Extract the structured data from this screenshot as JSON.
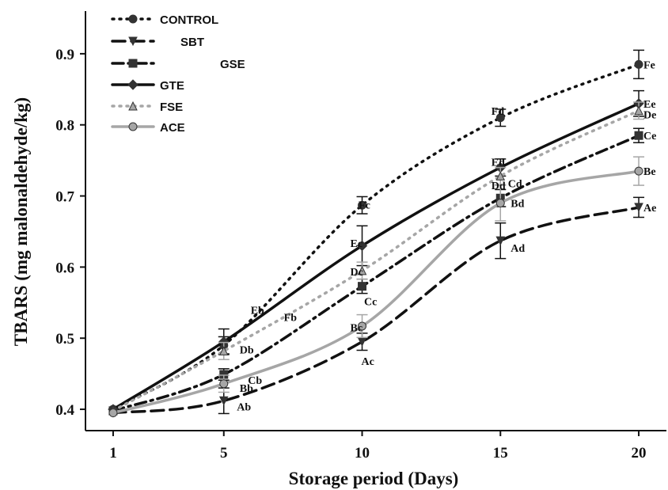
{
  "chart_data": {
    "type": "line",
    "xlabel": "Storage period (Days)",
    "ylabel": "TBARS (mg malonaldehyde/kg)",
    "x": [
      1,
      5,
      10,
      15,
      20
    ],
    "x_ticks": [
      "1",
      "5",
      "10",
      "15",
      "20"
    ],
    "y_ticks": [
      "0.4",
      "0.5",
      "0.6",
      "0.7",
      "0.8",
      "0.9"
    ],
    "xlim": [
      0,
      21
    ],
    "ylim": [
      0.37,
      0.96
    ],
    "legend_position": "top-left",
    "series": [
      {
        "name": "CONTROL",
        "color": "#111111",
        "dash": "dotted",
        "marker": "circle",
        "values": [
          0.4,
          0.49,
          0.687,
          0.81,
          0.885
        ],
        "errors": [
          0.005,
          0.012,
          0.012,
          0.012,
          0.02
        ]
      },
      {
        "name": "SBT",
        "color": "#111111",
        "dash": "dashed",
        "marker": "triangle-down",
        "values": [
          0.395,
          0.412,
          0.495,
          0.637,
          0.684
        ],
        "errors": [
          0.005,
          0.018,
          0.012,
          0.025,
          0.014
        ]
      },
      {
        "name": "GSE",
        "color": "#111111",
        "dash": "dashdot",
        "marker": "square",
        "values": [
          0.398,
          0.449,
          0.573,
          0.697,
          0.785
        ],
        "errors": [
          0.005,
          0.008,
          0.01,
          0.012,
          0.01
        ]
      },
      {
        "name": "GTE",
        "color": "#111111",
        "dash": "solid",
        "marker": "diamond",
        "values": [
          0.4,
          0.495,
          0.63,
          0.74,
          0.83
        ],
        "errors": [
          0.005,
          0.018,
          0.028,
          0.012,
          0.018
        ]
      },
      {
        "name": "FSE",
        "color": "#a6a6a6",
        "dash": "dotted",
        "marker": "triangle-up",
        "values": [
          0.398,
          0.482,
          0.595,
          0.728,
          0.82
        ],
        "errors": [
          0.005,
          0.012,
          0.012,
          0.012,
          0.012
        ]
      },
      {
        "name": "ACE",
        "color": "#a6a6a6",
        "dash": "solid",
        "marker": "circle",
        "values": [
          0.395,
          0.436,
          0.517,
          0.69,
          0.735
        ],
        "errors": [
          0.005,
          0.012,
          0.016,
          0.025,
          0.02
        ]
      }
    ],
    "annotations": [
      {
        "text": "Fe",
        "x": 20,
        "y": 0.885
      },
      {
        "text": "Ee",
        "x": 20,
        "y": 0.83
      },
      {
        "text": "De",
        "x": 20,
        "y": 0.815
      },
      {
        "text": "Ce",
        "x": 20,
        "y": 0.785
      },
      {
        "text": "Be",
        "x": 20,
        "y": 0.735
      },
      {
        "text": "Ae",
        "x": 20,
        "y": 0.684
      },
      {
        "text": "Fd",
        "x": 14.5,
        "y": 0.82
      },
      {
        "text": "Ed",
        "x": 14.5,
        "y": 0.748
      },
      {
        "text": "Dd",
        "x": 14.5,
        "y": 0.715
      },
      {
        "text": "Cd",
        "x": 15.1,
        "y": 0.718
      },
      {
        "text": "Bd",
        "x": 15.2,
        "y": 0.69
      },
      {
        "text": "Ad",
        "x": 15.2,
        "y": 0.627
      },
      {
        "text": "Fc",
        "x": 9.7,
        "y": 0.688
      },
      {
        "text": "Ec",
        "x": 9.4,
        "y": 0.634
      },
      {
        "text": "Dc",
        "x": 9.4,
        "y": 0.594
      },
      {
        "text": "Cc",
        "x": 9.9,
        "y": 0.552
      },
      {
        "text": "Bc",
        "x": 9.4,
        "y": 0.515
      },
      {
        "text": "Ac",
        "x": 9.8,
        "y": 0.468
      },
      {
        "text": "Eb",
        "x": 5.8,
        "y": 0.54
      },
      {
        "text": "Fb",
        "x": 7.0,
        "y": 0.53
      },
      {
        "text": "Db",
        "x": 5.4,
        "y": 0.484
      },
      {
        "text": "Cb",
        "x": 5.7,
        "y": 0.441
      },
      {
        "text": "Bb",
        "x": 5.4,
        "y": 0.43
      },
      {
        "text": "Ab",
        "x": 5.3,
        "y": 0.404
      }
    ]
  }
}
